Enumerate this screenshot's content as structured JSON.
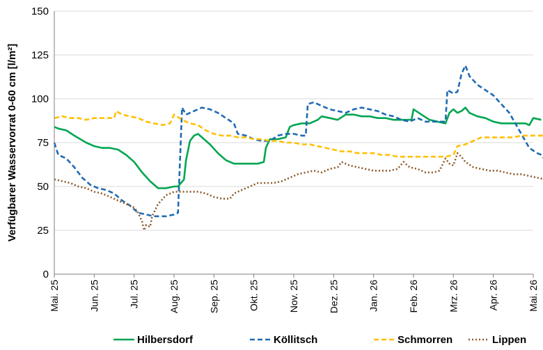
{
  "chart_data": {
    "type": "line",
    "title": "",
    "xlabel": "",
    "ylabel": "Verfügbarer Wasservorrat 0-60 cm [l/m²]",
    "ylim": [
      0,
      150
    ],
    "yticks": [
      0,
      25,
      50,
      75,
      100,
      125,
      150
    ],
    "xlim": [
      0,
      12
    ],
    "xticks": [
      {
        "x": 0,
        "label": "Mai. 25"
      },
      {
        "x": 1,
        "label": "Jun. 25"
      },
      {
        "x": 2,
        "label": "Jul. 25"
      },
      {
        "x": 3,
        "label": "Aug. 25"
      },
      {
        "x": 4,
        "label": "Sep. 25"
      },
      {
        "x": 5,
        "label": "Okt. 25"
      },
      {
        "x": 6,
        "label": "Nov. 25"
      },
      {
        "x": 7,
        "label": "Dez. 25"
      },
      {
        "x": 8,
        "label": "Jan. 26"
      },
      {
        "x": 9,
        "label": "Feb. 26"
      },
      {
        "x": 10,
        "label": "Mrz. 26"
      },
      {
        "x": 11,
        "label": "Apr. 26"
      },
      {
        "x": 12,
        "label": "Mai. 26"
      }
    ],
    "grid": "horizontal",
    "legend_position": "bottom",
    "series": [
      {
        "name": "Hilbersdorf",
        "color": "#00a651",
        "style": "solid",
        "points": [
          [
            0,
            84
          ],
          [
            0.1,
            83
          ],
          [
            0.3,
            82
          ],
          [
            0.5,
            79
          ],
          [
            0.8,
            75
          ],
          [
            1.0,
            73
          ],
          [
            1.2,
            72
          ],
          [
            1.4,
            72
          ],
          [
            1.6,
            71
          ],
          [
            1.8,
            68
          ],
          [
            2.0,
            64
          ],
          [
            2.2,
            58
          ],
          [
            2.4,
            53
          ],
          [
            2.6,
            49
          ],
          [
            2.8,
            49
          ],
          [
            3.0,
            50
          ],
          [
            3.1,
            50
          ],
          [
            3.25,
            54
          ],
          [
            3.3,
            65
          ],
          [
            3.4,
            76
          ],
          [
            3.5,
            79
          ],
          [
            3.6,
            80
          ],
          [
            3.7,
            78
          ],
          [
            3.9,
            74
          ],
          [
            4.1,
            69
          ],
          [
            4.3,
            65
          ],
          [
            4.5,
            63
          ],
          [
            4.7,
            63
          ],
          [
            4.9,
            63
          ],
          [
            5.1,
            63
          ],
          [
            5.25,
            64
          ],
          [
            5.3,
            72
          ],
          [
            5.4,
            77
          ],
          [
            5.6,
            77
          ],
          [
            5.8,
            78
          ],
          [
            5.9,
            84
          ],
          [
            6.0,
            85
          ],
          [
            6.2,
            86
          ],
          [
            6.4,
            86
          ],
          [
            6.6,
            88
          ],
          [
            6.7,
            90
          ],
          [
            6.9,
            89
          ],
          [
            7.1,
            88
          ],
          [
            7.3,
            91
          ],
          [
            7.5,
            91
          ],
          [
            7.7,
            90
          ],
          [
            7.9,
            90
          ],
          [
            8.1,
            89
          ],
          [
            8.3,
            89
          ],
          [
            8.5,
            88
          ],
          [
            8.7,
            88
          ],
          [
            8.95,
            88
          ],
          [
            9.0,
            94
          ],
          [
            9.2,
            91
          ],
          [
            9.4,
            88
          ],
          [
            9.6,
            87
          ],
          [
            9.8,
            86
          ],
          [
            9.9,
            92
          ],
          [
            10.0,
            94
          ],
          [
            10.1,
            92
          ],
          [
            10.2,
            93
          ],
          [
            10.3,
            95
          ],
          [
            10.4,
            92
          ],
          [
            10.6,
            90
          ],
          [
            10.8,
            89
          ],
          [
            11.0,
            87
          ],
          [
            11.2,
            86
          ],
          [
            11.4,
            86
          ],
          [
            11.6,
            86
          ],
          [
            11.8,
            86
          ],
          [
            11.9,
            85
          ],
          [
            12.0,
            89
          ],
          [
            12.2,
            88
          ]
        ]
      },
      {
        "name": "Köllitsch",
        "color": "#1f6ab4",
        "style": "dashed",
        "points": [
          [
            0,
            75
          ],
          [
            0.1,
            68
          ],
          [
            0.3,
            66
          ],
          [
            0.5,
            61
          ],
          [
            0.7,
            55
          ],
          [
            0.9,
            51
          ],
          [
            1.1,
            49
          ],
          [
            1.3,
            48
          ],
          [
            1.5,
            46
          ],
          [
            1.7,
            42
          ],
          [
            1.9,
            39
          ],
          [
            2.1,
            35
          ],
          [
            2.3,
            34
          ],
          [
            2.5,
            33
          ],
          [
            2.8,
            33
          ],
          [
            3.0,
            34
          ],
          [
            3.1,
            35
          ],
          [
            3.2,
            95
          ],
          [
            3.3,
            91
          ],
          [
            3.5,
            93
          ],
          [
            3.7,
            95
          ],
          [
            3.9,
            94
          ],
          [
            4.1,
            92
          ],
          [
            4.3,
            89
          ],
          [
            4.5,
            86
          ],
          [
            4.6,
            80
          ],
          [
            4.8,
            79
          ],
          [
            5.0,
            77
          ],
          [
            5.2,
            76
          ],
          [
            5.4,
            76
          ],
          [
            5.6,
            79
          ],
          [
            5.8,
            80
          ],
          [
            6.0,
            80
          ],
          [
            6.2,
            79
          ],
          [
            6.3,
            79
          ],
          [
            6.35,
            97
          ],
          [
            6.5,
            98
          ],
          [
            6.7,
            96
          ],
          [
            6.9,
            94
          ],
          [
            7.1,
            93
          ],
          [
            7.3,
            92
          ],
          [
            7.5,
            94
          ],
          [
            7.7,
            95
          ],
          [
            7.9,
            94
          ],
          [
            8.1,
            93
          ],
          [
            8.3,
            91
          ],
          [
            8.5,
            90
          ],
          [
            8.7,
            88
          ],
          [
            8.9,
            87
          ],
          [
            9.1,
            89
          ],
          [
            9.3,
            87
          ],
          [
            9.5,
            87
          ],
          [
            9.7,
            87
          ],
          [
            9.8,
            87
          ],
          [
            9.85,
            105
          ],
          [
            10.0,
            103
          ],
          [
            10.1,
            104
          ],
          [
            10.2,
            114
          ],
          [
            10.3,
            119
          ],
          [
            10.4,
            113
          ],
          [
            10.6,
            108
          ],
          [
            10.8,
            105
          ],
          [
            11.0,
            102
          ],
          [
            11.2,
            97
          ],
          [
            11.4,
            92
          ],
          [
            11.5,
            88
          ],
          [
            11.7,
            80
          ],
          [
            11.9,
            72
          ],
          [
            12.1,
            69
          ],
          [
            12.2,
            68
          ],
          [
            12.3,
            65
          ]
        ]
      },
      {
        "name": "Schmorren",
        "color": "#ffc000",
        "style": "dashed",
        "points": [
          [
            0,
            89
          ],
          [
            0.2,
            90
          ],
          [
            0.4,
            89
          ],
          [
            0.6,
            89
          ],
          [
            0.8,
            88
          ],
          [
            1.0,
            89
          ],
          [
            1.2,
            89
          ],
          [
            1.4,
            89
          ],
          [
            1.5,
            89
          ],
          [
            1.55,
            93
          ],
          [
            1.7,
            91
          ],
          [
            1.9,
            90
          ],
          [
            2.1,
            89
          ],
          [
            2.3,
            87
          ],
          [
            2.5,
            86
          ],
          [
            2.7,
            85
          ],
          [
            2.9,
            86
          ],
          [
            3.0,
            91
          ],
          [
            3.2,
            88
          ],
          [
            3.4,
            86
          ],
          [
            3.6,
            85
          ],
          [
            3.8,
            82
          ],
          [
            4.0,
            80
          ],
          [
            4.2,
            79
          ],
          [
            4.4,
            79
          ],
          [
            4.6,
            78
          ],
          [
            4.8,
            78
          ],
          [
            5.0,
            77
          ],
          [
            5.2,
            77
          ],
          [
            5.4,
            76
          ],
          [
            5.6,
            76
          ],
          [
            5.8,
            75
          ],
          [
            6.0,
            75
          ],
          [
            6.2,
            74
          ],
          [
            6.4,
            74
          ],
          [
            6.6,
            73
          ],
          [
            6.8,
            72
          ],
          [
            7.0,
            71
          ],
          [
            7.2,
            70
          ],
          [
            7.4,
            70
          ],
          [
            7.6,
            69
          ],
          [
            7.8,
            69
          ],
          [
            8.0,
            69
          ],
          [
            8.2,
            68
          ],
          [
            8.4,
            68
          ],
          [
            8.6,
            67
          ],
          [
            8.8,
            67
          ],
          [
            9.0,
            67
          ],
          [
            9.2,
            67
          ],
          [
            9.4,
            67
          ],
          [
            9.6,
            67
          ],
          [
            9.8,
            67
          ],
          [
            10.0,
            68
          ],
          [
            10.1,
            73
          ],
          [
            10.3,
            74
          ],
          [
            10.5,
            76
          ],
          [
            10.7,
            78
          ],
          [
            10.9,
            78
          ],
          [
            11.1,
            78
          ],
          [
            11.3,
            78
          ],
          [
            11.5,
            78
          ],
          [
            11.7,
            79
          ],
          [
            11.9,
            79
          ],
          [
            12.1,
            79
          ],
          [
            12.3,
            79
          ]
        ]
      },
      {
        "name": "Lippen",
        "color": "#8b5a2b",
        "style": "dotted",
        "points": [
          [
            0,
            54
          ],
          [
            0.2,
            53
          ],
          [
            0.4,
            52
          ],
          [
            0.6,
            50
          ],
          [
            0.8,
            49
          ],
          [
            1.0,
            47
          ],
          [
            1.2,
            46
          ],
          [
            1.4,
            44
          ],
          [
            1.6,
            42
          ],
          [
            1.8,
            40
          ],
          [
            2.0,
            38
          ],
          [
            2.1,
            35
          ],
          [
            2.2,
            30
          ],
          [
            2.25,
            25
          ],
          [
            2.3,
            28
          ],
          [
            2.4,
            27
          ],
          [
            2.45,
            33
          ],
          [
            2.6,
            40
          ],
          [
            2.8,
            45
          ],
          [
            3.0,
            47
          ],
          [
            3.2,
            47
          ],
          [
            3.4,
            47
          ],
          [
            3.6,
            47
          ],
          [
            3.8,
            46
          ],
          [
            4.0,
            44
          ],
          [
            4.2,
            43
          ],
          [
            4.4,
            43
          ],
          [
            4.5,
            46
          ],
          [
            4.7,
            48
          ],
          [
            4.9,
            50
          ],
          [
            5.1,
            52
          ],
          [
            5.3,
            52
          ],
          [
            5.5,
            52
          ],
          [
            5.7,
            53
          ],
          [
            5.9,
            55
          ],
          [
            6.1,
            57
          ],
          [
            6.3,
            58
          ],
          [
            6.5,
            59
          ],
          [
            6.7,
            58
          ],
          [
            6.9,
            60
          ],
          [
            7.1,
            61
          ],
          [
            7.2,
            64
          ],
          [
            7.4,
            62
          ],
          [
            7.6,
            61
          ],
          [
            7.8,
            60
          ],
          [
            8.0,
            59
          ],
          [
            8.2,
            59
          ],
          [
            8.4,
            59
          ],
          [
            8.6,
            60
          ],
          [
            8.75,
            64
          ],
          [
            8.9,
            61
          ],
          [
            9.1,
            60
          ],
          [
            9.3,
            58
          ],
          [
            9.5,
            58
          ],
          [
            9.65,
            59
          ],
          [
            9.8,
            66
          ],
          [
            9.9,
            63
          ],
          [
            10.0,
            62
          ],
          [
            10.1,
            69
          ],
          [
            10.2,
            67
          ],
          [
            10.3,
            64
          ],
          [
            10.5,
            61
          ],
          [
            10.7,
            60
          ],
          [
            10.9,
            59
          ],
          [
            11.1,
            59
          ],
          [
            11.3,
            58
          ],
          [
            11.5,
            57
          ],
          [
            11.7,
            57
          ],
          [
            11.9,
            56
          ],
          [
            12.1,
            55
          ],
          [
            12.3,
            54
          ]
        ]
      }
    ]
  }
}
